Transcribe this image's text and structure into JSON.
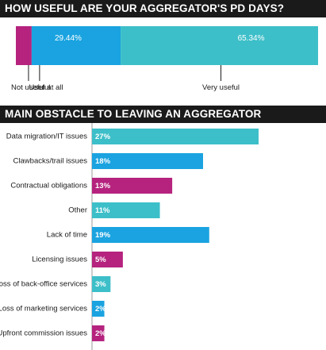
{
  "chart_data": [
    {
      "type": "bar",
      "title": "HOW USEFUL ARE YOUR AGGREGATOR'S PD DAYS?",
      "stacked": true,
      "series": [
        {
          "name": "Not useful at all",
          "value": 5.22,
          "label": "5.22%",
          "color": "#b5237e"
        },
        {
          "name": "Useful",
          "value": 29.44,
          "label": "29.44%",
          "color": "#1aa3e0"
        },
        {
          "name": "Very useful",
          "value": 65.34,
          "label": "65.34%",
          "color": "#3dbfc9"
        }
      ],
      "xlim": [
        0,
        100
      ]
    },
    {
      "type": "bar",
      "orientation": "horizontal",
      "title": "MAIN OBSTACLE TO LEAVING AN AGGREGATOR",
      "categories": [
        "Data migration/IT issues",
        "Clawbacks/trail issues",
        "Contractual obligations",
        "Other",
        "Lack of time",
        "Licensing issues",
        "Loss of back-office services",
        "Loss of marketing services",
        "Upfront commission issues"
      ],
      "values": [
        27,
        18,
        13,
        11,
        19,
        5,
        3,
        2,
        2
      ],
      "labels": [
        "27%",
        "18%",
        "13%",
        "11%",
        "19%",
        "5%",
        "3%",
        "2%",
        "2%"
      ],
      "colors": [
        "#3dbfc9",
        "#1aa3e0",
        "#b5237e",
        "#3dbfc9",
        "#1aa3e0",
        "#b5237e",
        "#3dbfc9",
        "#1aa3e0",
        "#b5237e"
      ],
      "xlim": [
        0,
        28
      ]
    }
  ]
}
